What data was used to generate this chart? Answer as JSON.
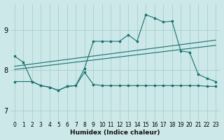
{
  "xlabel": "Humidex (Indice chaleur)",
  "bg_color": "#cce8e8",
  "grid_color": "#aacece",
  "line_color": "#1a7070",
  "x_ticks": [
    0,
    1,
    2,
    3,
    4,
    5,
    6,
    7,
    8,
    9,
    10,
    11,
    12,
    13,
    14,
    15,
    16,
    17,
    18,
    19,
    20,
    21,
    22,
    23
  ],
  "y_ticks": [
    7,
    8,
    9
  ],
  "xlim": [
    -0.5,
    23.5
  ],
  "ylim": [
    6.75,
    9.65
  ],
  "line1_x": [
    0,
    1,
    2,
    3,
    4,
    5,
    6,
    7,
    8,
    9,
    10,
    11,
    12,
    13,
    14,
    15,
    16,
    17,
    18,
    19,
    20,
    21,
    22,
    23
  ],
  "line1_y": [
    8.35,
    8.2,
    7.72,
    7.62,
    7.58,
    7.5,
    7.6,
    7.62,
    8.05,
    8.72,
    8.72,
    8.72,
    8.72,
    8.88,
    8.72,
    9.38,
    9.3,
    9.2,
    9.22,
    8.48,
    8.45,
    7.9,
    7.8,
    7.72
  ],
  "line2_x": [
    0,
    2,
    3,
    4,
    5,
    6,
    7,
    8,
    9,
    10,
    11,
    12,
    13,
    14,
    15,
    16,
    17,
    18,
    19,
    20,
    21,
    22,
    23
  ],
  "line2_y": [
    7.72,
    7.72,
    7.62,
    7.58,
    7.5,
    7.6,
    7.62,
    7.95,
    7.65,
    7.62,
    7.62,
    7.62,
    7.62,
    7.62,
    7.62,
    7.62,
    7.62,
    7.62,
    7.62,
    7.62,
    7.62,
    7.6,
    7.6
  ],
  "line3_x": [
    0,
    23
  ],
  "line3_y": [
    8.02,
    8.62
  ],
  "line4_x": [
    0,
    23
  ],
  "line4_y": [
    8.1,
    8.75
  ]
}
